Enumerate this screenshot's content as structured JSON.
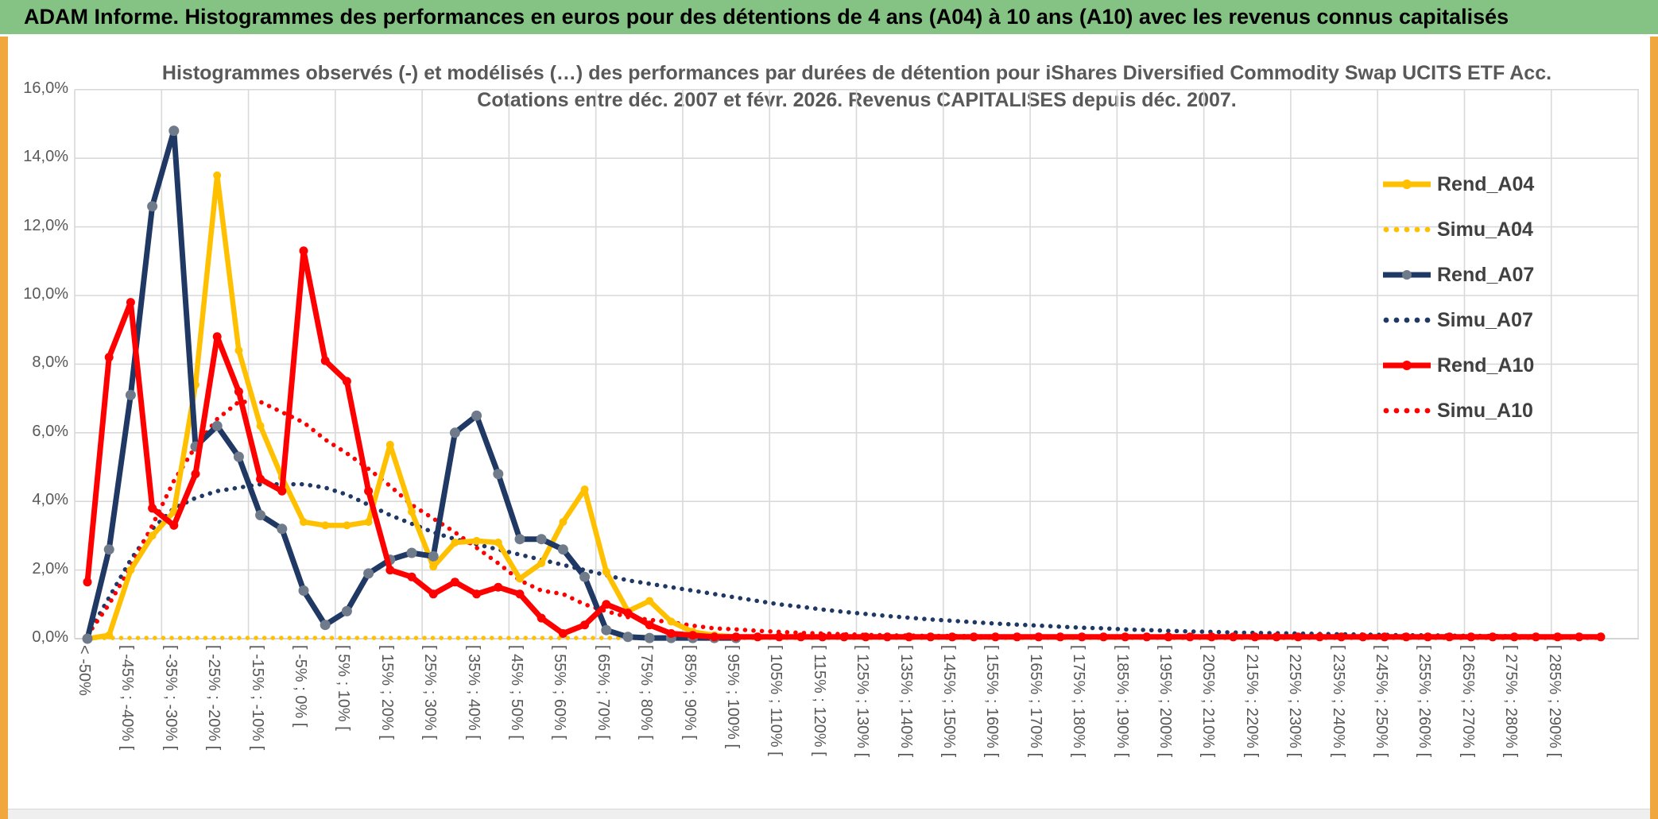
{
  "window": {
    "header_title": "ADAM Informe. Histogrammes des performances en euros pour des détentions de 4 ans (A04) à 10 ans (A10) avec les revenus connus capitalisés",
    "header_bg": "#84C383",
    "border_gold": "#F0A73E"
  },
  "chart_data": {
    "type": "line",
    "title_line1": "Histogrammes observés (-) et modélisés (…) des performances par durées de détention pour iShares Diversified Commodity Swap UCITS ETF Acc.",
    "title_line2": "Cotations entre déc. 2007 et févr. 2026. Revenus CAPITALISES depuis déc. 2007.",
    "ylim": [
      0,
      16
    ],
    "grid": true,
    "legend_position": "right",
    "y_ticks": [
      "0,0%",
      "2,0%",
      "4,0%",
      "6,0%",
      "8,0%",
      "10,0%",
      "12,0%",
      "14,0%",
      "16,0%"
    ],
    "x_labels": [
      "< -50%",
      "",
      "[ -45% ; -40% [",
      "",
      "[ -35% ; -30% [",
      "",
      "[ -25% ; -20% [",
      "",
      "[ -15% ; -10% [",
      "",
      "[ -5% ; 0% [",
      "",
      "[ 5% ; 10% [",
      "",
      "[ 15% ; 20% [",
      "",
      "[ 25% ; 30% [",
      "",
      "[ 35% ; 40% [",
      "",
      "[ 45% ; 50% [",
      "",
      "[ 55% ; 60% [",
      "",
      "[ 65% ; 70% [",
      "",
      "[ 75% ; 80% [",
      "",
      "[ 85% ; 90% [",
      "",
      "[ 95% ; 100% [",
      "",
      "[ 105% ; 110% [",
      "",
      "[ 115% ; 120% [",
      "",
      "[ 125% ; 130% [",
      "",
      "[ 135% ; 140% [",
      "",
      "[ 145% ; 150% [",
      "",
      "[ 155% ; 160% [",
      "",
      "[ 165% ; 170% [",
      "",
      "[ 175% ; 180% [",
      "",
      "[ 185% ; 190% [",
      "",
      "[ 195% ; 200% [",
      "",
      "[ 205% ; 210% [",
      "",
      "[ 215% ; 220% [",
      "",
      "[ 225% ; 230% [",
      "",
      "[ 235% ; 240% [",
      "",
      "[ 245% ; 250% [",
      "",
      "[ 255% ; 260% [",
      "",
      "[ 265% ; 270% [",
      "",
      "[ 275% ; 280% [",
      "",
      "[ 285% ; 290% [",
      "",
      ""
    ],
    "series": [
      {
        "name": "Rend_A04",
        "color": "#FFC000",
        "style": "solid",
        "marker_color": "#FFC000",
        "marker_r": 5,
        "values": [
          0.0,
          0.1,
          2.0,
          3.0,
          3.7,
          7.4,
          13.5,
          8.4,
          6.2,
          4.7,
          3.4,
          3.3,
          3.3,
          3.4,
          5.65,
          3.7,
          2.1,
          2.8,
          2.85,
          2.8,
          1.75,
          2.2,
          3.4,
          4.35,
          1.95,
          0.8,
          1.1,
          0.5,
          0.2,
          0.1,
          0.05
        ]
      },
      {
        "name": "Simu_A04",
        "color": "#FFC000",
        "style": "dotted",
        "values": [
          0.02,
          0.02,
          0.02,
          0.02,
          0.02,
          0.02,
          0.02,
          0.02,
          0.02,
          0.02,
          0.02,
          0.02,
          0.02,
          0.02,
          0.02,
          0.02,
          0.02,
          0.02,
          0.02,
          0.02,
          0.02,
          0.02,
          0.02,
          0.02,
          0.02,
          0.02,
          0.02,
          0.02,
          0.02,
          0.02,
          0.02,
          0.02,
          0.02,
          0.02,
          0.02,
          0.02,
          0.02,
          0.02,
          0.02,
          0.02,
          0.02,
          0.02,
          0.02,
          0.02,
          0.02,
          0.02,
          0.02,
          0.02,
          0.02,
          0.02,
          0.02,
          0.02,
          0.02,
          0.02,
          0.02,
          0.02,
          0.02,
          0.02,
          0.02,
          0.02,
          0.02,
          0.02,
          0.02,
          0.02,
          0.02,
          0.02,
          0.02,
          0.02,
          0.02,
          0.02,
          0.02
        ]
      },
      {
        "name": "Rend_A07",
        "color": "#1F3864",
        "style": "solid",
        "marker_color": "#6F7B8A",
        "marker_r": 6.5,
        "values": [
          0.0,
          2.6,
          7.1,
          12.6,
          14.8,
          5.6,
          6.2,
          5.3,
          3.6,
          3.2,
          1.4,
          0.4,
          0.8,
          1.9,
          2.3,
          2.5,
          2.4,
          6.0,
          6.5,
          4.8,
          2.9,
          2.9,
          2.6,
          1.8,
          0.25,
          0.05,
          0.02,
          0.02,
          0.02,
          0.02,
          0.02
        ]
      },
      {
        "name": "Simu_A07",
        "color": "#1F3864",
        "style": "dotted",
        "values": [
          0.1,
          1.2,
          2.3,
          3.2,
          3.8,
          4.1,
          4.3,
          4.4,
          4.5,
          4.5,
          4.5,
          4.4,
          4.2,
          3.9,
          3.6,
          3.35,
          3.1,
          2.9,
          2.75,
          2.6,
          2.45,
          2.3,
          2.15,
          2.0,
          1.85,
          1.7,
          1.6,
          1.5,
          1.4,
          1.3,
          1.2,
          1.1,
          1.0,
          0.93,
          0.85,
          0.78,
          0.72,
          0.66,
          0.61,
          0.56,
          0.52,
          0.48,
          0.44,
          0.41,
          0.38,
          0.35,
          0.32,
          0.3,
          0.27,
          0.25,
          0.23,
          0.21,
          0.2,
          0.18,
          0.17,
          0.16,
          0.15,
          0.14,
          0.13,
          0.12,
          0.11,
          0.1,
          0.1,
          0.09,
          0.08,
          0.08,
          0.07,
          0.07,
          0.06,
          0.06,
          0.06
        ]
      },
      {
        "name": "Rend_A10",
        "color": "#FF0000",
        "style": "solid",
        "marker_color": "#FF0000",
        "marker_r": 5.5,
        "values": [
          1.65,
          8.2,
          9.8,
          3.8,
          3.3,
          4.8,
          8.8,
          7.2,
          4.65,
          4.3,
          11.3,
          8.1,
          7.5,
          4.3,
          2.0,
          1.8,
          1.3,
          1.65,
          1.3,
          1.5,
          1.3,
          0.6,
          0.15,
          0.4,
          1.0,
          0.75,
          0.4,
          0.15,
          0.1,
          0.05,
          0.05,
          0.05,
          0.05,
          0.05,
          0.05,
          0.05,
          0.05,
          0.05,
          0.05,
          0.05,
          0.05,
          0.05,
          0.05,
          0.05,
          0.05,
          0.05,
          0.05,
          0.05,
          0.05,
          0.05,
          0.05,
          0.05,
          0.05,
          0.05,
          0.05,
          0.05,
          0.05,
          0.05,
          0.05,
          0.05,
          0.05,
          0.05,
          0.05,
          0.05,
          0.05,
          0.05,
          0.05,
          0.05,
          0.05,
          0.05,
          0.05
        ]
      },
      {
        "name": "Simu_A10",
        "color": "#FF0000",
        "style": "dotted",
        "values": [
          0.1,
          1.0,
          2.1,
          3.3,
          4.6,
          5.6,
          6.4,
          6.9,
          6.9,
          6.6,
          6.3,
          5.8,
          5.4,
          4.95,
          4.45,
          3.9,
          3.5,
          3.1,
          2.65,
          2.2,
          1.7,
          1.4,
          1.3,
          1.0,
          0.8,
          0.63,
          0.55,
          0.48,
          0.38,
          0.3,
          0.27,
          0.23,
          0.2,
          0.17,
          0.15,
          0.13,
          0.11,
          0.1,
          0.09,
          0.08,
          0.08,
          0.07,
          0.07,
          0.06,
          0.06,
          0.05,
          0.05,
          0.05,
          0.04,
          0.04,
          0.04,
          0.03,
          0.03,
          0.03,
          0.03,
          0.03,
          0.03,
          0.03,
          0.03,
          0.03,
          0.03,
          0.03,
          0.03,
          0.03,
          0.03,
          0.03,
          0.03,
          0.03,
          0.03,
          0.03,
          0.03
        ]
      }
    ]
  }
}
